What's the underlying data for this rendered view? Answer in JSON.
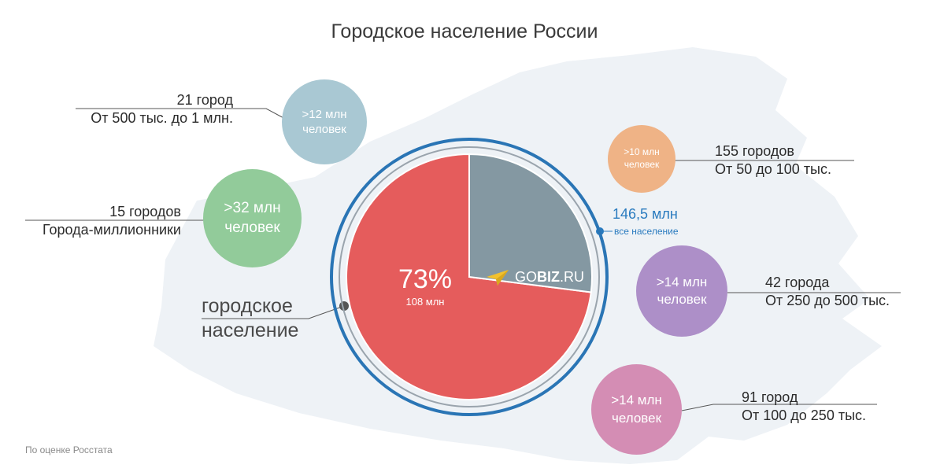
{
  "title": "Городское население России",
  "footnote": "По оценке Росстата",
  "urban_label": "городское\nнаселение",
  "total": {
    "value": "146,5 млн",
    "label": "все население"
  },
  "logo": {
    "text_prefix": "GO",
    "text_bold": "BIZ",
    "text_suffix": ".RU",
    "icon": "paper-plane-icon",
    "color": "#f2c12e"
  },
  "chart_data": {
    "type": "pie",
    "title": "Городское население России",
    "slices": [
      {
        "label": "городское население",
        "percent": 73,
        "value_label": "108 млн",
        "color": "#e55c5c"
      },
      {
        "label": "",
        "percent": 27,
        "color": "#8498a2"
      }
    ]
  },
  "groups": [
    {
      "bubble": ">12 млн\nчеловек",
      "color": "#a9c8d3",
      "count": "21 город",
      "range": "От 500 тыс. до 1 млн."
    },
    {
      "bubble": ">32 млн\nчеловек",
      "color": "#92cb9a",
      "count": "15 городов",
      "range": "Города-миллионники"
    },
    {
      "bubble": ">10 млн\nчеловек",
      "color": "#efb386",
      "count": "155 городов",
      "range": "От 50 до 100 тыс."
    },
    {
      "bubble": ">14 млн\nчеловек",
      "color": "#ad8fc8",
      "count": "42 города",
      "range": "От 250 до 500 тыс."
    },
    {
      "bubble": ">14 млн\nчеловек",
      "color": "#d48db4",
      "count": "91 город",
      "range": "От 100 до 250 тыс."
    }
  ]
}
